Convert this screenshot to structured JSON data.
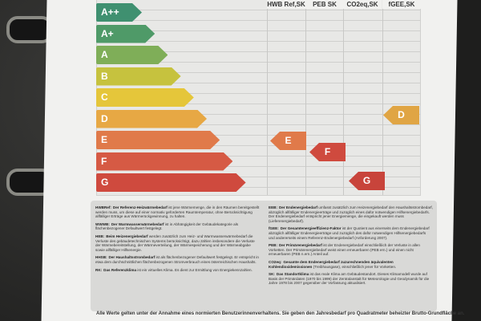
{
  "columns": [
    "HWB Ref,SK",
    "PEB SK",
    "CO2eq,SK",
    "fGEE,SK"
  ],
  "scale": [
    {
      "label": "A++",
      "color": "#3f9070"
    },
    {
      "label": "A+",
      "color": "#4f9a68"
    },
    {
      "label": "A",
      "color": "#7fae58"
    },
    {
      "label": "B",
      "color": "#c6c23e"
    },
    {
      "label": "C",
      "color": "#e5c63a"
    },
    {
      "label": "D",
      "color": "#e7a844"
    },
    {
      "label": "E",
      "color": "#e07a4a"
    },
    {
      "label": "F",
      "color": "#d65a44"
    },
    {
      "label": "G",
      "color": "#cf4a3e"
    }
  ],
  "ratings": {
    "hwb": {
      "label": "E",
      "color": "#e07a4a"
    },
    "peb": {
      "label": "F",
      "color": "#cf4a3e"
    },
    "co2": {
      "label": "G",
      "color": "#c8443b"
    },
    "fgee": {
      "label": "D",
      "color": "#e0a544"
    }
  },
  "definitions_left": [
    {
      "term": "HWBRef:",
      "bold": "Der Referenz-Heizwärmebedarf",
      "text": " ist jene Wärmemenge, die in den Räumen bereitgestellt werden muss, um diese auf einer normativ geforderten Raumtemperatur, ohne Berücksichtigung allfälliger Erträge aus Wärmerückgewinnung, zu halten."
    },
    {
      "term": "WWWB:",
      "bold": "Der Warmwasserwärmebedarf",
      "text": " ist in Abhängigkeit der Gebäudekategorie als flächenbezogener Defaultwert festgelegt."
    },
    {
      "term": "HEB:",
      "bold": "Beim Heizenergiebedarf",
      "text": " werden zusätzlich zum Heiz- und Warmwasserwärmebedarf die Verluste des gebäudetechnischen Systems berücksichtigt, dazu zählen insbesondere die Verluste der Wärmebereitstellung, der Wärmeverteilung, der Wärmespeicherung und der Wärmeabgabe sowie allfälliger Hilfsenergie."
    },
    {
      "term": "HHSB:",
      "bold": "Der Haushaltsstrombedarf",
      "text": " ist als flächenbezogener Defaultwert festgelegt. Er entspricht in etwa dem durchschnittlichen flächenbezogenen Stromverbrauch eines österreichischen Haushalts."
    },
    {
      "term": "RK:",
      "bold": "Das Referenzklima",
      "text": " ist ein virtuelles Klima. Es dient zur Ermittlung von Energiekennzahlen."
    }
  ],
  "definitions_right": [
    {
      "term": "EEB:",
      "bold": "Der Endenergiebedarf",
      "text": " umfasst zusätzlich zum Heizenergiebedarf den Haushaltsstrombedarf, abzüglich allfälliger Endenergieerträge und zuzüglich eines dafür notwendigen Hilfsenergiebedarfs. Der Endenergiebedarf entspricht jener Energiemenge, die eingekauft werden muss (Lieferenergiebedarf)."
    },
    {
      "term": "fGEE:",
      "bold": "Der Gesamtenergieeffizienz-Faktor",
      "text": " ist der Quotient aus einerseits dem Endenergiebedarf abzüglich allfälliger Endenergieerträge und zuzüglich des dafür notwendigen Hilfsenergiebedarfs und andererseits einem Referenz-Endenergiebedarf (Anforderung 2007)."
    },
    {
      "term": "PEB:",
      "bold": "Der Primärenergiebedarf",
      "text": " ist der Endenergiebedarf einschließlich der Verluste in allen Vorketten. Der Primärenergiebedarf weist einen erneuerbaren (PEB ern.) und einen nicht erneuerbaren (PEB n.ern.) Anteil auf."
    },
    {
      "term": "CO2eq:",
      "bold": "Gesamte dem Endenergiebedarf zuzurechnenden äquivalenten Kohlendioxidemissionen",
      "text": " (Treibhausgase), einschließlich jener für Vorketten."
    },
    {
      "term": "SK:",
      "bold": "Das Standortklima",
      "text": " ist das reale Klima am Gebäudestandort. Dieses Klimamodell wurde auf Basis der Primärdaten (1970 bis 1999) der Zentralanstalt für Meteorologie und Geodynamik für die Jahre 1978 bis 2007 gegenüber der Vorfassung aktualisiert."
    }
  ],
  "footer": "Alle Werte gelten unter der Annahme eines normierten Benutzerinnenverhaltens. Sie geben den Jahresbedarf pro Quadratmeter beheizter Brutto-Grundfläche an."
}
